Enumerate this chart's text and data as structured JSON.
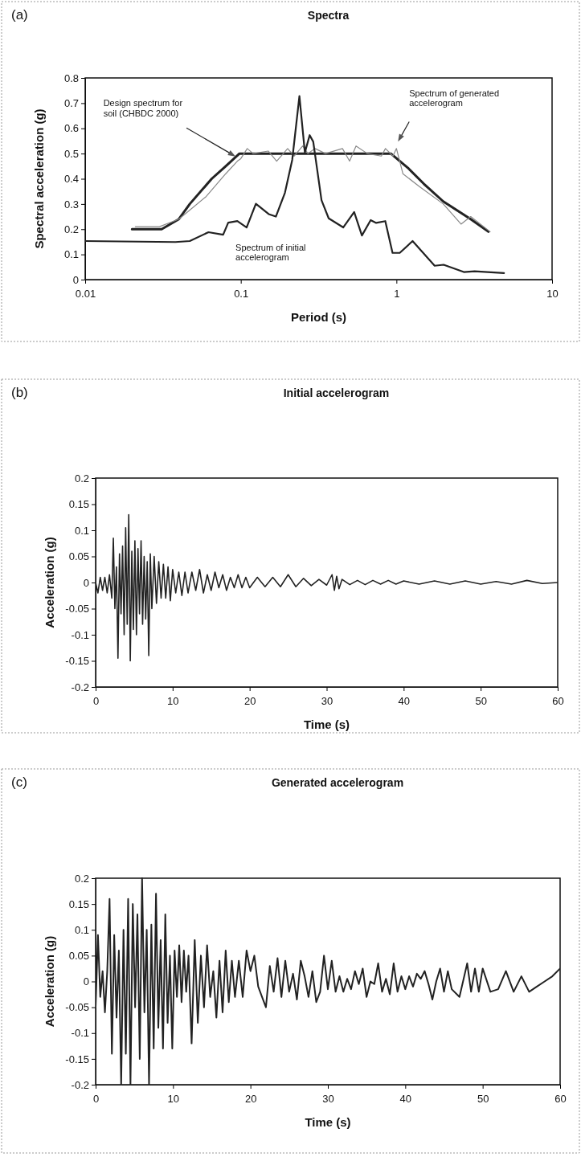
{
  "chart_data": [
    {
      "type": "line",
      "title": "Spectra",
      "xlabel": "Period (s)",
      "ylabel": "Spectral acceleration (g)",
      "log": "x",
      "xlim": [
        0.01,
        10
      ],
      "xticks": [
        0.01,
        0.1,
        1,
        10
      ],
      "ylim": [
        0,
        0.8
      ],
      "yticks": [
        0,
        0.1,
        0.2,
        0.3,
        0.4,
        0.5,
        0.6,
        0.7,
        0.8
      ],
      "annotations": [
        "(a)",
        "Design spectrum for soil (CHBDC 2000)",
        "Spectrum of generated accelerogram",
        "Spectrum of initial accelerogram"
      ],
      "series": [
        {
          "color": "#222222",
          "x": [
            0.02,
            0.031,
            0.04,
            0.047,
            0.065,
            0.08,
            0.098,
            0.92,
            1.2,
            1.5,
            2,
            3,
            3.9
          ],
          "values": [
            0.2,
            0.2,
            0.24,
            0.3,
            0.4,
            0.45,
            0.5,
            0.5,
            0.44,
            0.38,
            0.31,
            0.24,
            0.19
          ]
        },
        {
          "color": "#888888",
          "x": [
            0.021,
            0.03,
            0.04,
            0.06,
            0.08,
            0.095,
            0.1,
            0.11,
            0.12,
            0.15,
            0.17,
            0.2,
            0.22,
            0.25,
            0.27,
            0.3,
            0.35,
            0.45,
            0.5,
            0.55,
            0.65,
            0.8,
            0.85,
            0.95,
            1.0,
            1.1,
            1.4,
            2,
            2.6,
            3,
            4
          ],
          "values": [
            0.21,
            0.21,
            0.24,
            0.33,
            0.42,
            0.47,
            0.48,
            0.52,
            0.5,
            0.51,
            0.47,
            0.52,
            0.49,
            0.53,
            0.5,
            0.52,
            0.5,
            0.52,
            0.47,
            0.53,
            0.5,
            0.49,
            0.52,
            0.49,
            0.52,
            0.42,
            0.37,
            0.3,
            0.22,
            0.25,
            0.19
          ]
        },
        {
          "color": "#222222",
          "x": [
            0.01,
            0.038,
            0.047,
            0.062,
            0.077,
            0.083,
            0.095,
            0.109,
            0.125,
            0.151,
            0.168,
            0.192,
            0.214,
            0.238,
            0.258,
            0.277,
            0.292,
            0.33,
            0.367,
            0.455,
            0.535,
            0.6,
            0.683,
            0.741,
            0.848,
            0.944,
            1.05,
            1.27,
            1.76,
            2.01,
            2.71,
            3.18,
            4.91
          ],
          "values": [
            0.153,
            0.149,
            0.153,
            0.188,
            0.178,
            0.226,
            0.232,
            0.207,
            0.301,
            0.26,
            0.25,
            0.344,
            0.475,
            0.728,
            0.504,
            0.573,
            0.547,
            0.315,
            0.243,
            0.207,
            0.268,
            0.175,
            0.236,
            0.225,
            0.232,
            0.106,
            0.106,
            0.153,
            0.055,
            0.059,
            0.03,
            0.033,
            0.026
          ]
        }
      ]
    },
    {
      "type": "line",
      "title": "Initial accelerogram",
      "xlabel": "Time (s)",
      "ylabel": "Acceleration (g)",
      "xlim": [
        0,
        60
      ],
      "xticks": [
        0,
        10,
        20,
        30,
        40,
        50,
        60
      ],
      "ylim": [
        -0.2,
        0.2
      ],
      "yticks": [
        -0.2,
        -0.15,
        -0.1,
        -0.05,
        0,
        0.05,
        0.1,
        0.15,
        0.2
      ],
      "annotations": [
        "(b)"
      ],
      "series": [
        {
          "color": "#222222",
          "x": [
            0,
            0.3,
            0.6,
            0.9,
            1.2,
            1.5,
            1.8,
            2.1,
            2.3,
            2.5,
            2.7,
            2.9,
            3.1,
            3.3,
            3.5,
            3.7,
            3.9,
            4.1,
            4.3,
            4.5,
            4.7,
            4.9,
            5.1,
            5.3,
            5.5,
            5.7,
            5.9,
            6.1,
            6.3,
            6.5,
            6.7,
            6.9,
            7.1,
            7.3,
            7.6,
            7.9,
            8.2,
            8.5,
            8.8,
            9.1,
            9.4,
            9.7,
            10,
            10.4,
            10.8,
            11.2,
            11.6,
            12,
            12.5,
            13,
            13.5,
            14,
            14.5,
            15,
            15.5,
            16,
            16.5,
            17,
            17.5,
            18,
            18.5,
            19,
            19.5,
            20,
            21,
            22,
            23,
            24,
            25,
            26,
            27,
            28,
            29,
            30,
            30.7,
            31,
            31.3,
            31.6,
            32,
            33,
            34,
            35,
            36,
            37,
            38,
            39,
            40,
            42,
            44,
            46,
            48,
            50,
            52,
            54,
            56,
            58,
            60
          ],
          "values": [
            0,
            -0.02,
            0.01,
            -0.015,
            0.01,
            -0.02,
            0.015,
            -0.03,
            0.085,
            -0.05,
            0.03,
            -0.145,
            0.055,
            -0.06,
            0.07,
            -0.1,
            0.105,
            -0.08,
            0.13,
            -0.15,
            0.06,
            -0.09,
            0.08,
            -0.1,
            0.065,
            -0.06,
            0.08,
            -0.08,
            0.05,
            -0.07,
            0.04,
            -0.14,
            0.055,
            -0.05,
            0.05,
            -0.04,
            0.04,
            -0.03,
            0.035,
            -0.03,
            0.03,
            -0.035,
            0.025,
            -0.02,
            0.02,
            -0.025,
            0.02,
            -0.02,
            0.02,
            -0.015,
            0.025,
            -0.02,
            0.015,
            -0.015,
            0.02,
            -0.01,
            0.015,
            -0.015,
            0.01,
            -0.01,
            0.015,
            -0.01,
            0.01,
            -0.01,
            0.01,
            -0.008,
            0.01,
            -0.008,
            0.015,
            -0.008,
            0.008,
            -0.006,
            0.006,
            -0.005,
            0.015,
            -0.015,
            0.012,
            -0.012,
            0.006,
            -0.004,
            0.004,
            -0.004,
            0.004,
            -0.003,
            0.004,
            -0.003,
            0.003,
            -0.003,
            0.003,
            -0.003,
            0.003,
            -0.003,
            0.002,
            -0.003,
            0.004,
            -0.002,
            0
          ]
        }
      ]
    },
    {
      "type": "line",
      "title": "Generated accelerogram",
      "xlabel": "Time (s)",
      "ylabel": "Acceleration (g)",
      "xlim": [
        0,
        60
      ],
      "xticks": [
        0,
        10,
        20,
        30,
        40,
        50,
        60
      ],
      "ylim": [
        -0.2,
        0.2
      ],
      "yticks": [
        -0.2,
        -0.15,
        -0.1,
        -0.05,
        0,
        0.05,
        0.1,
        0.15,
        0.2
      ],
      "annotations": [
        "(c)"
      ],
      "series": [
        {
          "color": "#222222",
          "x": [
            0,
            0.3,
            0.6,
            0.9,
            1.2,
            1.5,
            1.8,
            2.1,
            2.4,
            2.7,
            3,
            3.3,
            3.6,
            3.9,
            4.2,
            4.5,
            4.8,
            5.1,
            5.4,
            5.7,
            6,
            6.3,
            6.6,
            6.9,
            7.2,
            7.5,
            7.8,
            8.1,
            8.4,
            8.7,
            9,
            9.3,
            9.6,
            9.9,
            10.2,
            10.5,
            10.8,
            11.1,
            11.4,
            11.7,
            12,
            12.4,
            12.8,
            13.2,
            13.6,
            14,
            14.4,
            14.8,
            15.2,
            15.6,
            16,
            16.4,
            16.8,
            17.2,
            17.6,
            18,
            18.5,
            19,
            19.5,
            20,
            20.5,
            21,
            21.5,
            22,
            22.5,
            23,
            23.5,
            24,
            24.5,
            25,
            25.5,
            26,
            26.5,
            27,
            27.5,
            28,
            28.5,
            29,
            29.5,
            30,
            30.5,
            31,
            31.5,
            32,
            32.5,
            33,
            33.5,
            34,
            34.5,
            35,
            35.5,
            36,
            36.5,
            37,
            37.5,
            38,
            38.5,
            39,
            39.5,
            40,
            40.5,
            41,
            41.5,
            42,
            42.5,
            43,
            43.5,
            44,
            44.5,
            45,
            45.5,
            46,
            47,
            48,
            48.5,
            49,
            49.5,
            50,
            51,
            52,
            53,
            54,
            55,
            56,
            57,
            58,
            59,
            60
          ],
          "values": [
            -0.05,
            0.09,
            -0.03,
            0.02,
            -0.06,
            0.02,
            0.16,
            -0.14,
            0.09,
            -0.07,
            0.06,
            -0.2,
            0.1,
            -0.14,
            0.16,
            -0.2,
            0.15,
            -0.05,
            0.13,
            -0.15,
            0.2,
            -0.06,
            0.1,
            -0.2,
            0.11,
            -0.13,
            0.17,
            -0.09,
            0.08,
            -0.13,
            0.13,
            -0.08,
            0.05,
            -0.13,
            0.06,
            -0.03,
            0.07,
            -0.04,
            0.06,
            -0.02,
            0.05,
            -0.12,
            0.08,
            -0.08,
            0.05,
            -0.05,
            0.07,
            -0.03,
            0.02,
            -0.07,
            0.04,
            -0.06,
            0.06,
            -0.04,
            0.04,
            -0.03,
            0.04,
            -0.03,
            0.06,
            0.02,
            0.05,
            -0.01,
            -0.03,
            -0.05,
            0.03,
            -0.02,
            0.045,
            -0.03,
            0.04,
            -0.02,
            0.015,
            -0.035,
            0.04,
            0.01,
            -0.03,
            0.02,
            -0.04,
            -0.02,
            0.05,
            -0.015,
            0.04,
            -0.02,
            0.01,
            -0.02,
            0.005,
            -0.015,
            0.02,
            -0.005,
            0.025,
            -0.03,
            0,
            -0.005,
            0.035,
            -0.02,
            0.005,
            -0.025,
            0.035,
            -0.02,
            0.01,
            -0.015,
            0.01,
            -0.01,
            0.015,
            0.005,
            0.02,
            -0.005,
            -0.035,
            0,
            0.025,
            -0.02,
            0.02,
            -0.015,
            -0.03,
            0.035,
            -0.02,
            0.025,
            -0.02,
            0.025,
            -0.02,
            -0.015,
            0.02,
            -0.02,
            0.01,
            -0.02,
            -0.01,
            0,
            0.01,
            0.025
          ]
        }
      ]
    }
  ]
}
